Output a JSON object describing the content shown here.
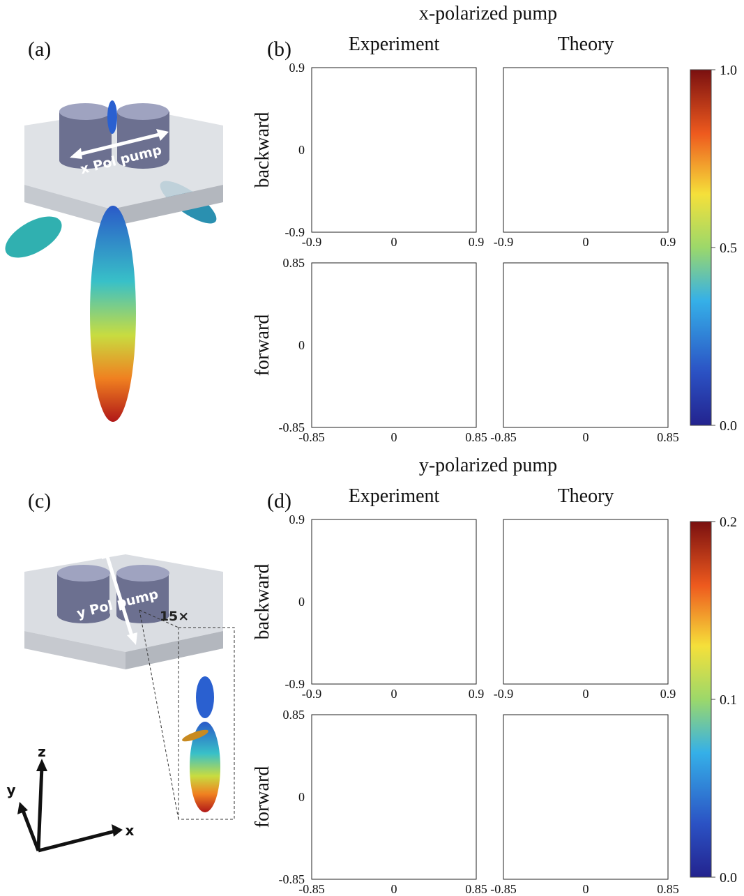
{
  "top": {
    "title": "x-polarized pump",
    "left_label": "(a)",
    "right_label": "(b)",
    "columns": [
      "Experiment",
      "Theory"
    ],
    "rows": [
      {
        "name": "backward",
        "ticks": [
          "-0.9",
          "0",
          "0.9"
        ]
      },
      {
        "name": "forward",
        "ticks": [
          "-0.85",
          "0",
          "0.85"
        ]
      }
    ],
    "colorbar": [
      "0.0",
      "0.5",
      "1.0"
    ],
    "illustration": {
      "pump": "x Pol pump"
    }
  },
  "bottom": {
    "title": "y-polarized pump",
    "left_label": "(c)",
    "right_label": "(d)",
    "columns": [
      "Experiment",
      "Theory"
    ],
    "rows": [
      {
        "name": "backward",
        "ticks": [
          "-0.9",
          "0",
          "0.9"
        ]
      },
      {
        "name": "forward",
        "ticks": [
          "-0.85",
          "0",
          "0.85"
        ]
      }
    ],
    "colorbar": [
      "0.0",
      "0.1",
      "0.2"
    ],
    "illustration": {
      "pump": "y Pol pump",
      "zoom": "15×",
      "axes": [
        "z",
        "y",
        "x"
      ]
    }
  }
}
